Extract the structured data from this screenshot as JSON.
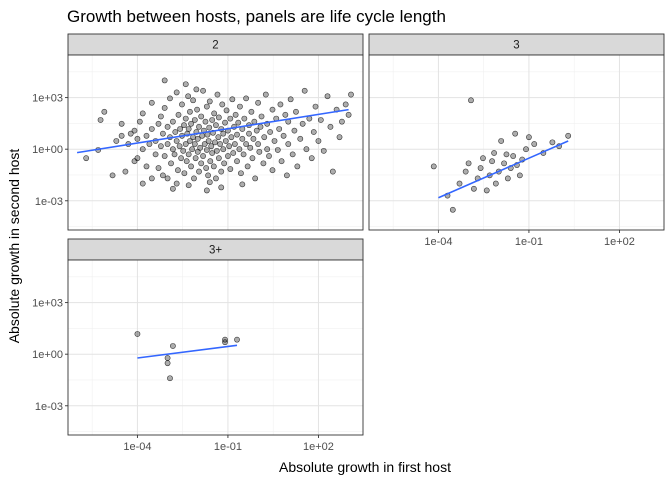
{
  "chart_data": {
    "type": "scatter",
    "title": "Growth between hosts, panels are life cycle length",
    "xlabel": "Absolute growth in first host",
    "ylabel": "Absolute growth in second host",
    "x_scale": "log10",
    "y_scale": "log10",
    "xlim": [
      5e-07,
      3000
    ],
    "ylim": [
      2e-05,
      300000
    ],
    "x_ticks": [
      0.0001,
      0.1,
      100
    ],
    "x_tick_labels": [
      "1e-04",
      "1e-01",
      "1e+02"
    ],
    "y_ticks": [
      0.001,
      1,
      1000
    ],
    "y_tick_labels": [
      "1e-03",
      "1e+00",
      "1e+03"
    ],
    "grid": true,
    "point_color": "#4d4d4d",
    "line_color": "#3366ff",
    "strip_fill": "#d9d9d9",
    "panels": [
      {
        "label": "2",
        "trend": {
          "x": [
            1e-06,
            1000
          ],
          "y": [
            0.63,
            200
          ]
        },
        "points": [
          [
            2e-06,
            0.3
          ],
          [
            5e-06,
            0.9
          ],
          [
            6e-06,
            50
          ],
          [
            8e-06,
            150
          ],
          [
            1.5e-05,
            0.03
          ],
          [
            2e-05,
            3
          ],
          [
            3e-05,
            6
          ],
          [
            3e-05,
            30
          ],
          [
            4e-05,
            0.05
          ],
          [
            5e-05,
            2
          ],
          [
            6e-05,
            8
          ],
          [
            8e-05,
            0.2
          ],
          [
            8e-05,
            12
          ],
          [
            0.0001,
            0.3
          ],
          [
            0.0001,
            4
          ],
          [
            0.00012,
            40
          ],
          [
            0.00015,
            1
          ],
          [
            0.00015,
            120
          ],
          [
            0.0002,
            0.1
          ],
          [
            0.0002,
            6
          ],
          [
            0.00025,
            2
          ],
          [
            0.0003,
            0.02
          ],
          [
            0.0003,
            15
          ],
          [
            0.0003,
            500
          ],
          [
            0.0004,
            0.5
          ],
          [
            0.0004,
            3
          ],
          [
            0.0005,
            30
          ],
          [
            0.0005,
            0.08
          ],
          [
            0.0006,
            1.5
          ],
          [
            0.0006,
            80
          ],
          [
            0.0007,
            0.03
          ],
          [
            0.0007,
            8
          ],
          [
            0.0008,
            0.4
          ],
          [
            0.0008,
            250
          ],
          [
            0.001,
            2
          ],
          [
            0.001,
            20
          ],
          [
            0.001,
            0.02
          ],
          [
            0.0012,
            5
          ],
          [
            0.0012,
            900
          ],
          [
            0.0013,
            0.15
          ],
          [
            0.0015,
            1
          ],
          [
            0.0015,
            40
          ],
          [
            0.0017,
            0.5
          ],
          [
            0.0018,
            10
          ],
          [
            0.002,
            3
          ],
          [
            0.002,
            2000
          ],
          [
            0.0022,
            0.06
          ],
          [
            0.0023,
            100
          ],
          [
            0.0025,
            1.5
          ],
          [
            0.0026,
            15
          ],
          [
            0.0028,
            0.3
          ],
          [
            0.003,
            6
          ],
          [
            0.003,
            400
          ],
          [
            0.0033,
            0.8
          ],
          [
            0.0035,
            25
          ],
          [
            0.0036,
            0.04
          ],
          [
            0.004,
            2
          ],
          [
            0.004,
            60
          ],
          [
            0.0043,
            0.2
          ],
          [
            0.0045,
            8
          ],
          [
            0.0048,
            1200
          ],
          [
            0.005,
            0.5
          ],
          [
            0.005,
            15
          ],
          [
            0.0055,
            3
          ],
          [
            0.0055,
            150
          ],
          [
            0.006,
            0.1
          ],
          [
            0.006,
            30
          ],
          [
            0.0065,
            1
          ],
          [
            0.007,
            5
          ],
          [
            0.007,
            700
          ],
          [
            0.0075,
            0.02
          ],
          [
            0.008,
            2
          ],
          [
            0.008,
            50
          ],
          [
            0.0085,
            0.3
          ],
          [
            0.009,
            10
          ],
          [
            0.0095,
            200
          ],
          [
            0.01,
            0.7
          ],
          [
            0.01,
            4
          ],
          [
            0.011,
            0.05
          ],
          [
            0.011,
            20
          ],
          [
            0.012,
            1.2
          ],
          [
            0.013,
            80
          ],
          [
            0.013,
            0.15
          ],
          [
            0.014,
            6
          ],
          [
            0.015,
            2500
          ],
          [
            0.015,
            0.4
          ],
          [
            0.016,
            12
          ],
          [
            0.017,
            2
          ],
          [
            0.018,
            40
          ],
          [
            0.019,
            0.08
          ],
          [
            0.02,
            0.9
          ],
          [
            0.02,
            300
          ],
          [
            0.021,
            7
          ],
          [
            0.022,
            0.03
          ],
          [
            0.023,
            3
          ],
          [
            0.024,
            18
          ],
          [
            0.025,
            600
          ],
          [
            0.026,
            0.2
          ],
          [
            0.028,
            1.5
          ],
          [
            0.03,
            50
          ],
          [
            0.03,
            0.6
          ],
          [
            0.032,
            9
          ],
          [
            0.034,
            0.1
          ],
          [
            0.035,
            120
          ],
          [
            0.037,
            2.5
          ],
          [
            0.04,
            25
          ],
          [
            0.04,
            0.02
          ],
          [
            0.043,
            0.8
          ],
          [
            0.045,
            1500
          ],
          [
            0.048,
            5
          ],
          [
            0.05,
            0.3
          ],
          [
            0.05,
            70
          ],
          [
            0.055,
            2
          ],
          [
            0.06,
            15
          ],
          [
            0.06,
            0.05
          ],
          [
            0.065,
            400
          ],
          [
            0.07,
            1
          ],
          [
            0.07,
            8
          ],
          [
            0.075,
            0.15
          ],
          [
            0.08,
            35
          ],
          [
            0.085,
            3
          ],
          [
            0.09,
            180
          ],
          [
            0.1,
            0.4
          ],
          [
            0.1,
            12
          ],
          [
            0.11,
            1.5
          ],
          [
            0.12,
            60
          ],
          [
            0.12,
            0.07
          ],
          [
            0.13,
            5
          ],
          [
            0.14,
            800
          ],
          [
            0.15,
            0.6
          ],
          [
            0.16,
            20
          ],
          [
            0.17,
            2
          ],
          [
            0.18,
            100
          ],
          [
            0.2,
            0.2
          ],
          [
            0.2,
            7
          ],
          [
            0.22,
            35
          ],
          [
            0.24,
            1
          ],
          [
            0.25,
            300
          ],
          [
            0.27,
            0.04
          ],
          [
            0.3,
            4
          ],
          [
            0.3,
            15
          ],
          [
            0.33,
            0.5
          ],
          [
            0.35,
            60
          ],
          [
            0.4,
            2
          ],
          [
            0.4,
            900
          ],
          [
            0.45,
            0.1
          ],
          [
            0.5,
            8
          ],
          [
            0.5,
            25
          ],
          [
            0.55,
            1.2
          ],
          [
            0.6,
            150
          ],
          [
            0.65,
            0.3
          ],
          [
            0.7,
            4
          ],
          [
            0.75,
            40
          ],
          [
            0.8,
            0.02
          ],
          [
            0.9,
            12
          ],
          [
            1,
            2
          ],
          [
            1,
            500
          ],
          [
            1.1,
            0.7
          ],
          [
            1.2,
            20
          ],
          [
            1.3,
            80
          ],
          [
            1.5,
            0.15
          ],
          [
            1.6,
            5
          ],
          [
            1.8,
            1500
          ],
          [
            2,
            1
          ],
          [
            2,
            30
          ],
          [
            2.3,
            0.4
          ],
          [
            2.5,
            10
          ],
          [
            3,
            200
          ],
          [
            3,
            0.06
          ],
          [
            3.5,
            3
          ],
          [
            4,
            60
          ],
          [
            4.5,
            0.9
          ],
          [
            5,
            15
          ],
          [
            5.5,
            400
          ],
          [
            6,
            0.2
          ],
          [
            7,
            6
          ],
          [
            8,
            100
          ],
          [
            9,
            0.03
          ],
          [
            10,
            2
          ],
          [
            10,
            40
          ],
          [
            12,
            800
          ],
          [
            14,
            0.5
          ],
          [
            16,
            12
          ],
          [
            18,
            150
          ],
          [
            20,
            0.1
          ],
          [
            25,
            4
          ],
          [
            30,
            30
          ],
          [
            35,
            2500
          ],
          [
            40,
            1
          ],
          [
            50,
            60
          ],
          [
            60,
            0.3
          ],
          [
            70,
            10
          ],
          [
            80,
            300
          ],
          [
            100,
            3
          ],
          [
            120,
            50
          ],
          [
            150,
            0.8
          ],
          [
            200,
            1200
          ],
          [
            250,
            20
          ],
          [
            300,
            0.05
          ],
          [
            400,
            200
          ],
          [
            500,
            5
          ],
          [
            600,
            40
          ],
          [
            800,
            400
          ],
          [
            1000,
            100
          ],
          [
            1200,
            1500
          ],
          [
            0.0015,
            0.005
          ],
          [
            0.005,
            0.008
          ],
          [
            0.02,
            0.004
          ],
          [
            0.0008,
            10000
          ],
          [
            0.004,
            6000
          ],
          [
            0.002,
            0.01
          ],
          [
            0.06,
            0.006
          ],
          [
            0.3,
            0.009
          ],
          [
            0.00015,
            0.01
          ],
          [
            0.009,
            3000
          ],
          [
            0.025,
            0.012
          ]
        ]
      },
      {
        "label": "3",
        "trend": {
          "x": [
            0.0001,
            2
          ],
          "y": [
            0.0015,
            3
          ]
        },
        "points": [
          [
            7e-05,
            0.1
          ],
          [
            0.0002,
            0.002
          ],
          [
            0.0003,
            0.0003
          ],
          [
            0.0005,
            0.01
          ],
          [
            0.0008,
            0.05
          ],
          [
            0.001,
            0.15
          ],
          [
            0.0012,
            700
          ],
          [
            0.0015,
            0.005
          ],
          [
            0.002,
            0.02
          ],
          [
            0.0025,
            0.08
          ],
          [
            0.003,
            0.3
          ],
          [
            0.004,
            0.004
          ],
          [
            0.005,
            0.03
          ],
          [
            0.006,
            0.2
          ],
          [
            0.007,
            0.6
          ],
          [
            0.008,
            0.01
          ],
          [
            0.01,
            0.05
          ],
          [
            0.012,
            3
          ],
          [
            0.015,
            0.15
          ],
          [
            0.018,
            0.5
          ],
          [
            0.02,
            0.02
          ],
          [
            0.025,
            0.08
          ],
          [
            0.03,
            0.4
          ],
          [
            0.035,
            8
          ],
          [
            0.04,
            0.12
          ],
          [
            0.05,
            0.03
          ],
          [
            0.06,
            0.25
          ],
          [
            0.08,
            1
          ],
          [
            0.1,
            5
          ],
          [
            0.15,
            2
          ],
          [
            0.3,
            0.6
          ],
          [
            0.6,
            2.5
          ],
          [
            1,
            1.5
          ],
          [
            2,
            6
          ]
        ]
      },
      {
        "label": "3+",
        "trend": {
          "x": [
            0.0001,
            0.2
          ],
          "y": [
            0.6,
            3.3
          ]
        },
        "points": [
          [
            0.0001,
            15
          ],
          [
            0.001,
            0.3
          ],
          [
            0.001,
            0.6
          ],
          [
            0.0012,
            0.04
          ],
          [
            0.0015,
            3
          ],
          [
            0.08,
            5
          ],
          [
            0.08,
            7
          ],
          [
            0.2,
            7
          ]
        ]
      }
    ]
  }
}
